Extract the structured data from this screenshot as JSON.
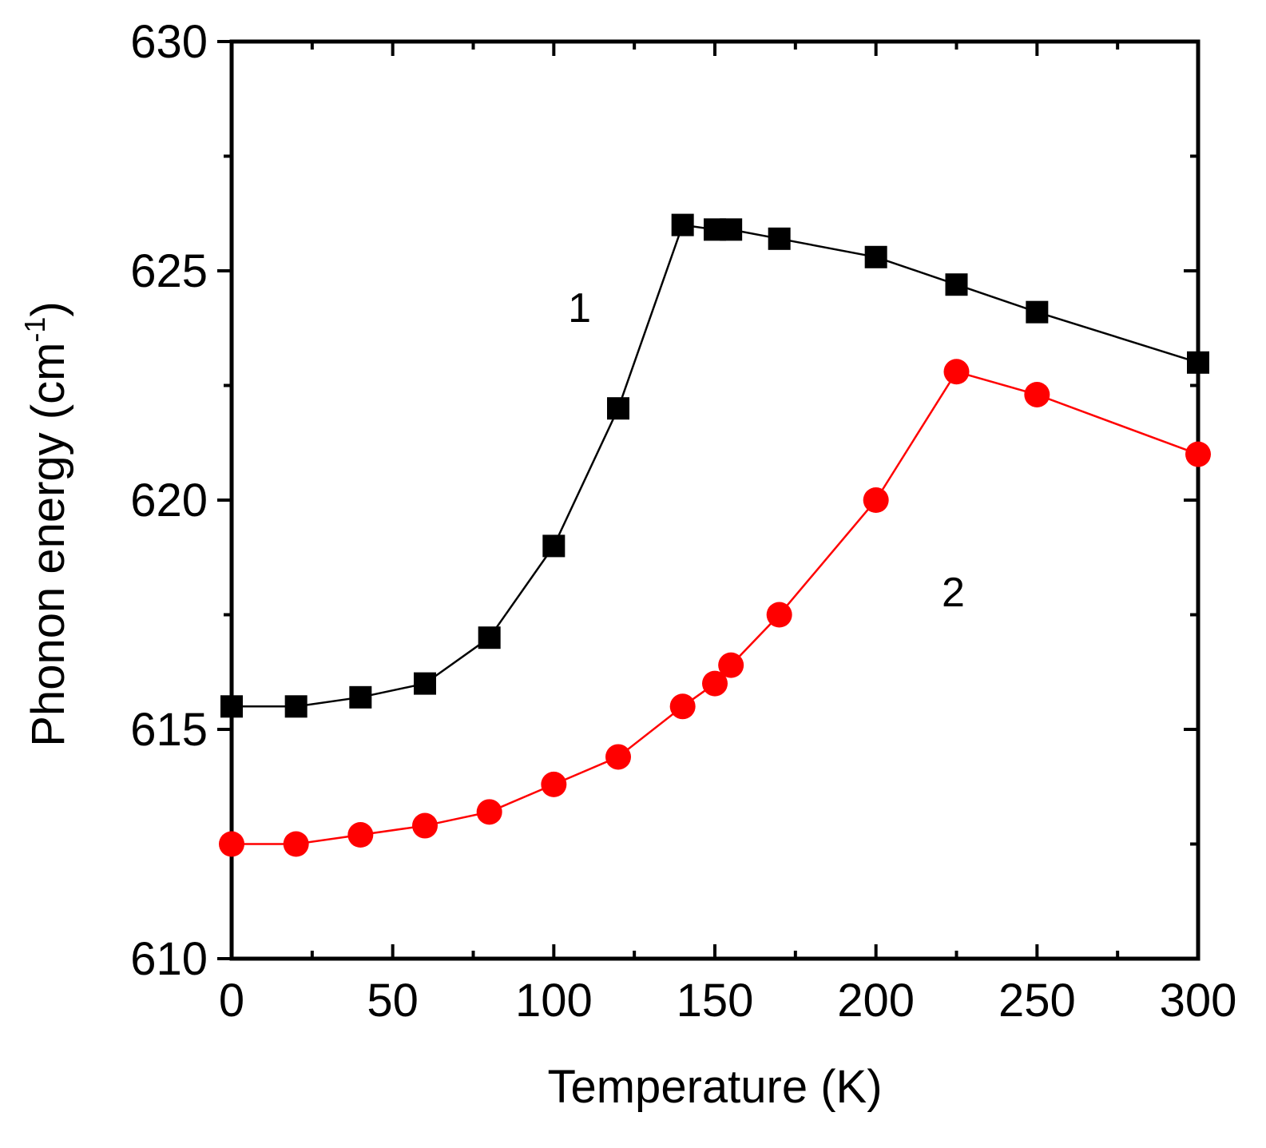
{
  "chart_data": {
    "type": "line",
    "title": "",
    "xlabel": "Temperature (K)",
    "ylabel_main": "Phonon energy (cm",
    "ylabel_sup": "-1",
    "ylabel_close": ")",
    "xlim": [
      0,
      300
    ],
    "ylim": [
      610,
      630
    ],
    "xticks": [
      0,
      50,
      100,
      150,
      200,
      250,
      300
    ],
    "yticks": [
      610,
      615,
      620,
      625,
      630
    ],
    "grid": false,
    "series": [
      {
        "name": "1",
        "color": "#000000",
        "marker": "square",
        "x": [
          0,
          20,
          40,
          60,
          80,
          100,
          120,
          140,
          150,
          155,
          170,
          200,
          225,
          250,
          300
        ],
        "y": [
          615.5,
          615.5,
          615.7,
          616.0,
          617.0,
          619.0,
          622.0,
          626.0,
          625.9,
          625.9,
          625.7,
          625.3,
          624.7,
          624.1,
          623.0
        ]
      },
      {
        "name": "2",
        "color": "#ff0000",
        "marker": "circle",
        "x": [
          0,
          20,
          40,
          60,
          80,
          100,
          120,
          140,
          150,
          155,
          170,
          200,
          225,
          250,
          300
        ],
        "y": [
          612.5,
          612.5,
          612.7,
          612.9,
          613.2,
          613.8,
          614.4,
          615.5,
          616.0,
          616.4,
          617.5,
          620.0,
          622.8,
          622.3,
          621.0
        ]
      }
    ],
    "annotations": [
      {
        "text": "1",
        "x": 108,
        "y": 624.2
      },
      {
        "text": "2",
        "x": 224,
        "y": 618.0
      }
    ]
  }
}
